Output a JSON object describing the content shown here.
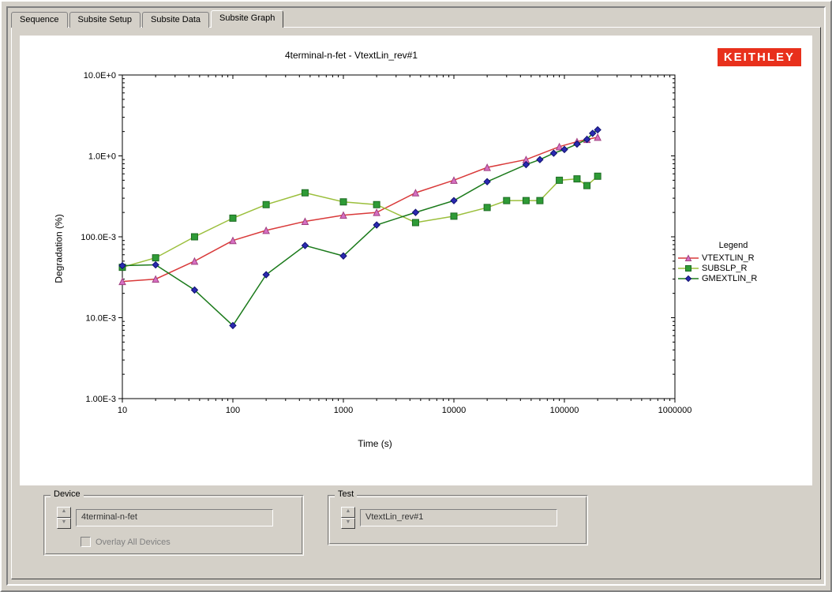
{
  "tabs": [
    "Sequence",
    "Subsite Setup",
    "Subsite Data",
    "Subsite Graph"
  ],
  "active_tab": 3,
  "brand": "KEITHLEY",
  "brand_bg": "#e8301c",
  "brand_fg": "#ffffff",
  "chart": {
    "title": "4terminal-n-fet - VtextLin_rev#1",
    "xlabel": "Time (s)",
    "ylabel": "Degradation (%)",
    "type": "line",
    "background_color": "#ffffff",
    "tick_color": "#000000",
    "grid_border_color": "#000000",
    "x_scale": "log",
    "y_scale": "log",
    "xlim": [
      10,
      1000000
    ],
    "ylim": [
      0.001,
      10
    ],
    "x_ticks": [
      10,
      100,
      1000,
      10000,
      100000,
      1000000
    ],
    "x_tick_labels": [
      "10",
      "100",
      "1000",
      "10000",
      "100000",
      "1000000"
    ],
    "y_ticks": [
      0.001,
      0.01,
      0.1,
      1,
      10
    ],
    "y_tick_labels": [
      "1.00E-3",
      "10.0E-3",
      "100.0E-3",
      "1.0E+0",
      "10.0E+0"
    ],
    "legend_title": "Legend",
    "legend_position": "right",
    "series": [
      {
        "name": "VTEXTLIN_R",
        "line_color": "#d93a3a",
        "marker_fill": "#d66fc2",
        "marker_stroke": "#a04080",
        "marker": "triangle",
        "marker_size": 8,
        "line_width": 1.5,
        "x": [
          10,
          20,
          45,
          100,
          200,
          450,
          1000,
          2000,
          4500,
          10000,
          20000,
          45000,
          90000,
          130000,
          160000,
          200000
        ],
        "y": [
          0.028,
          0.03,
          0.05,
          0.09,
          0.12,
          0.155,
          0.185,
          0.2,
          0.35,
          0.5,
          0.72,
          0.9,
          1.3,
          1.5,
          1.6,
          1.7
        ]
      },
      {
        "name": "SUBSLP_R",
        "line_color": "#9bbf3c",
        "marker_fill": "#2e9b36",
        "marker_stroke": "#1c6b22",
        "marker": "square",
        "marker_size": 8,
        "line_width": 1.5,
        "x": [
          10,
          20,
          45,
          100,
          200,
          450,
          1000,
          2000,
          4500,
          10000,
          20000,
          30000,
          45000,
          60000,
          90000,
          130000,
          160000,
          200000
        ],
        "y": [
          0.042,
          0.055,
          0.1,
          0.17,
          0.25,
          0.35,
          0.27,
          0.25,
          0.15,
          0.18,
          0.23,
          0.28,
          0.28,
          0.28,
          0.5,
          0.52,
          0.43,
          0.56
        ]
      },
      {
        "name": "GMEXTLIN_R",
        "line_color": "#1b7a1b",
        "marker_fill": "#2a2ab0",
        "marker_stroke": "#101070",
        "marker": "diamond",
        "marker_size": 8,
        "line_width": 1.5,
        "x": [
          10,
          20,
          45,
          100,
          200,
          450,
          1000,
          2000,
          4500,
          10000,
          20000,
          45000,
          60000,
          80000,
          100000,
          130000,
          160000,
          180000,
          200000
        ],
        "y": [
          0.044,
          0.045,
          0.022,
          0.008,
          0.034,
          0.078,
          0.058,
          0.14,
          0.2,
          0.28,
          0.48,
          0.78,
          0.9,
          1.08,
          1.2,
          1.4,
          1.6,
          1.9,
          2.1
        ]
      }
    ]
  },
  "device_group": {
    "label": "Device",
    "value": "4terminal-n-fet",
    "overlay_label": "Overlay All Devices",
    "overlay_checked": false,
    "overlay_enabled": false
  },
  "test_group": {
    "label": "Test",
    "value": "VtextLin_rev#1"
  }
}
